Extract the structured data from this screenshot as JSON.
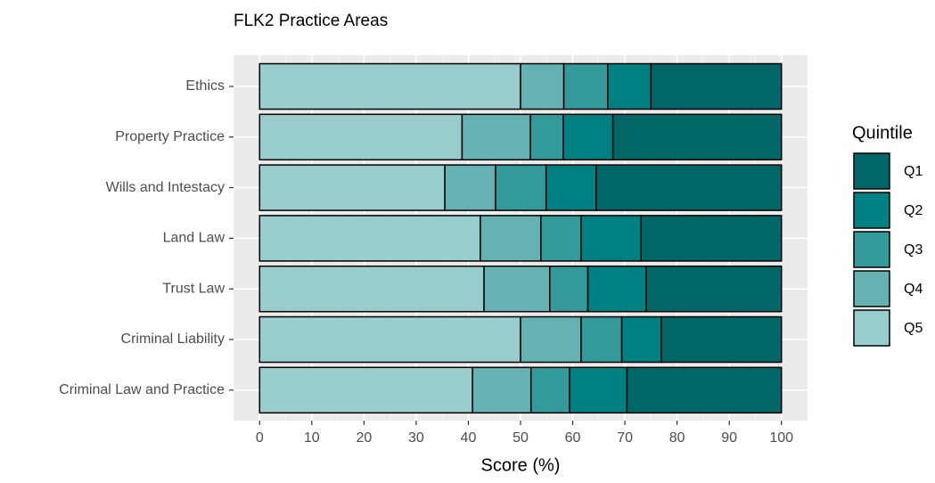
{
  "chart_data": {
    "type": "stacked_barh",
    "title": "FLK2 Practice Areas",
    "xlabel": "Score (%)",
    "legend_title": "Quintile",
    "categories": [
      "Ethics",
      "Property Practice",
      "Wills and Intestacy",
      "Land Law",
      "Trust Law",
      "Criminal Liability",
      "Criminal Law and Practice"
    ],
    "series": [
      {
        "name": "Q1",
        "color": "#006666",
        "values": [
          25,
          32.3,
          35.5,
          26.9,
          25.9,
          23,
          29.6
        ]
      },
      {
        "name": "Q2",
        "color": "#008080",
        "values": [
          8.3,
          9.5,
          9.6,
          11.5,
          11.2,
          7.6,
          11
        ]
      },
      {
        "name": "Q3",
        "color": "#339999",
        "values": [
          8.4,
          6.3,
          9.7,
          7.7,
          7.3,
          7.8,
          7.4
        ]
      },
      {
        "name": "Q4",
        "color": "#66b2b2",
        "values": [
          8.3,
          13.1,
          9.7,
          11.6,
          12.6,
          11.6,
          11.2
        ]
      },
      {
        "name": "Q5",
        "color": "#99cccc",
        "values": [
          50,
          38.8,
          35.5,
          42.3,
          43,
          50,
          40.8
        ]
      }
    ],
    "xlim": [
      -5,
      105
    ],
    "xticks": [
      0,
      10,
      20,
      30,
      40,
      50,
      60,
      70,
      80,
      90,
      100
    ],
    "grid": true
  }
}
